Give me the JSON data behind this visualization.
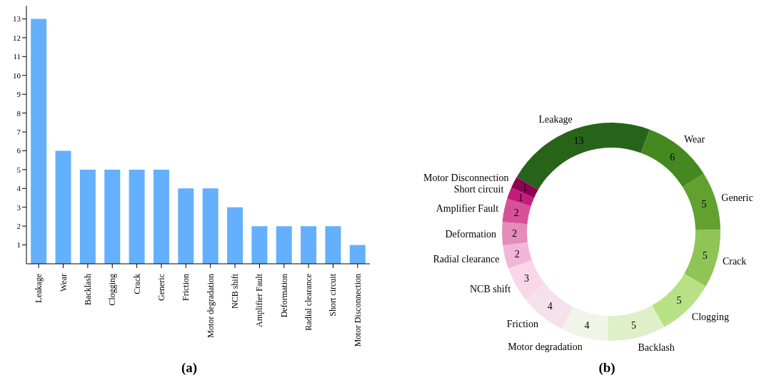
{
  "chart_data": [
    {
      "type": "bar",
      "title": "(a)",
      "categories": [
        "Leakage",
        "Wear",
        "Backlash",
        "Clogging",
        "Crack",
        "Generic",
        "Friction",
        "Motor degradation",
        "NCB shift",
        "Amplifier Fault",
        "Deformation",
        "Radial clearance",
        "Short circuit",
        "Motor Disconnection"
      ],
      "values": [
        13,
        6,
        5,
        5,
        5,
        5,
        4,
        4,
        3,
        2,
        2,
        2,
        2,
        1
      ],
      "color": "#64b0fc",
      "ylim": [
        0,
        13.7
      ],
      "yticks": [
        1,
        2,
        3,
        4,
        5,
        6,
        7,
        8,
        9,
        10,
        11,
        12,
        13
      ],
      "grid": false
    },
    {
      "type": "donut",
      "title": "(b)",
      "categories": [
        "Leakage",
        "Wear",
        "Generic",
        "Crack",
        "Clogging",
        "Backlash",
        "Motor degradation",
        "Friction",
        "NCB shift",
        "Radial clearance",
        "Deformation",
        "Amplifier Fault",
        "Short circuit",
        "Motor Disconnection"
      ],
      "values": [
        13,
        6,
        5,
        5,
        5,
        5,
        4,
        4,
        3,
        2,
        2,
        2,
        1,
        1
      ],
      "colors": [
        "#276419",
        "#44891f",
        "#62a030",
        "#8fc456",
        "#b8e186",
        "#dff0c8",
        "#f0f5e8",
        "#f5e0eb",
        "#f9d6e8",
        "#f1b6da",
        "#e48cba",
        "#d7509a",
        "#c51b7d",
        "#8e0152"
      ],
      "data_labels": true
    }
  ]
}
